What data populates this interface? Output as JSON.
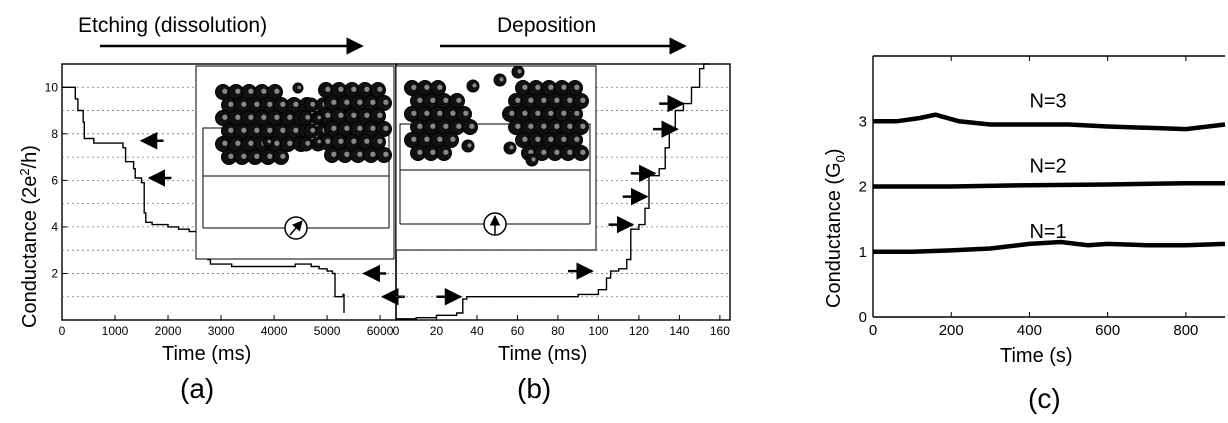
{
  "header": {
    "etching_label": "Etching (dissolution)",
    "deposition_label": "Deposition"
  },
  "panel_labels": [
    "(a)",
    "(b)",
    "(c)"
  ],
  "shared": {
    "ylabel_ab_main": "Conductance (2e",
    "ylabel_ab_sup": "2",
    "ylabel_ab_end": "/h)",
    "ylabel_c_main": "Conductance (G",
    "ylabel_c_sub": "0",
    "ylabel_c_end": ")"
  },
  "chart_data": [
    {
      "panel": "a",
      "type": "line",
      "xlabel": "Time (ms)",
      "ylabel": "Conductance (2e²/h)",
      "xlim": [
        0,
        6300
      ],
      "ylim": [
        0,
        11
      ],
      "xticks": [
        0,
        1000,
        2000,
        3000,
        4000,
        5000,
        6000
      ],
      "yticks": [
        2,
        4,
        6,
        8,
        10
      ],
      "grid": true,
      "series": [
        {
          "x": [
            0,
            180,
            250,
            300,
            400,
            420,
            600,
            800,
            1000,
            1150,
            1200,
            1350,
            1380,
            1500,
            1550,
            1580,
            1700,
            2000,
            2200,
            2400,
            2600,
            2700,
            2750,
            2800,
            3200,
            3600,
            4000,
            4400,
            4700,
            4850,
            5000,
            5100,
            5150,
            5250,
            5300,
            5320
          ],
          "y": [
            10,
            10,
            9.5,
            9.0,
            8.5,
            7.8,
            7.6,
            7.6,
            7.6,
            7.4,
            6.8,
            6.5,
            6.1,
            5.9,
            4.6,
            4.2,
            4.1,
            4.0,
            3.9,
            3.8,
            3.7,
            3.6,
            2.6,
            2.4,
            2.3,
            2.3,
            2.3,
            2.4,
            2.3,
            2.2,
            2.1,
            2.0,
            1.0,
            1.0,
            1.1,
            0.3
          ]
        }
      ],
      "arrow_levels": [
        7.7,
        6.1,
        3.9,
        2.0,
        1.0
      ]
    },
    {
      "panel": "b",
      "type": "line",
      "xlabel": "Time (ms)",
      "xlim": [
        0,
        165
      ],
      "ylim": [
        0,
        11
      ],
      "xticks": [
        0,
        20,
        40,
        60,
        80,
        100,
        120,
        140,
        160
      ],
      "grid": true,
      "series": [
        {
          "x": [
            0,
            10,
            20,
            30,
            33,
            35,
            50,
            70,
            90,
            100,
            104,
            106,
            110,
            114,
            116,
            120,
            123,
            125,
            130,
            133,
            135,
            138,
            142,
            146,
            150,
            152,
            155
          ],
          "y": [
            0.05,
            0.1,
            0.2,
            0.3,
            0.9,
            1.0,
            1.0,
            1.0,
            1.1,
            1.3,
            1.8,
            2.1,
            2.2,
            2.6,
            3.9,
            4.1,
            4.8,
            6.2,
            6.5,
            7.4,
            8.2,
            9.0,
            9.3,
            10.0,
            10.8,
            11.0,
            11.0
          ]
        }
      ],
      "arrow_levels": [
        1.0,
        2.1,
        4.1,
        5.3,
        6.3,
        8.2,
        9.3
      ]
    },
    {
      "panel": "c",
      "type": "line",
      "xlabel": "Time (s)",
      "ylabel": "Conductance (G0)",
      "xlim": [
        0,
        900
      ],
      "ylim": [
        0,
        4
      ],
      "xticks": [
        0,
        200,
        400,
        600,
        800
      ],
      "yticks": [
        0,
        1,
        2,
        3
      ],
      "grid": false,
      "series": [
        {
          "name": "N=3",
          "x": [
            0,
            60,
            120,
            160,
            220,
            300,
            400,
            500,
            600,
            700,
            800,
            900
          ],
          "y": [
            3.0,
            3.0,
            3.05,
            3.1,
            3.0,
            2.95,
            2.95,
            2.95,
            2.92,
            2.9,
            2.88,
            2.95
          ]
        },
        {
          "name": "N=2",
          "x": [
            0,
            200,
            400,
            600,
            800,
            900
          ],
          "y": [
            2.0,
            2.0,
            2.02,
            2.03,
            2.05,
            2.05
          ]
        },
        {
          "name": "N=1",
          "x": [
            0,
            100,
            200,
            300,
            400,
            480,
            550,
            600,
            700,
            800,
            900
          ],
          "y": [
            1.0,
            1.0,
            1.02,
            1.05,
            1.12,
            1.15,
            1.1,
            1.12,
            1.1,
            1.1,
            1.12
          ]
        }
      ]
    }
  ]
}
